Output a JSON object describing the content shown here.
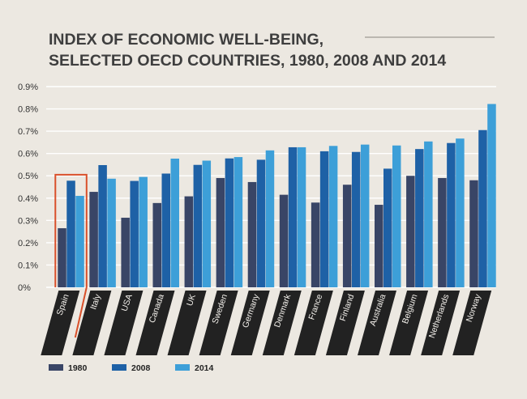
{
  "chart_data": {
    "type": "bar",
    "title_lines": [
      "INDEX OF ECONOMIC WELL-BEING,",
      "SELECTED OECD COUNTRIES, 1980, 2008 AND 2014"
    ],
    "categories": [
      "Spain",
      "Italy",
      "USA",
      "Canada",
      "UK",
      "Sweden",
      "Germany",
      "Denmark",
      "France",
      "Finland",
      "Australia",
      "Belgium",
      "Netherlands",
      "Norway"
    ],
    "series": [
      {
        "name": "1980",
        "color": "#394566",
        "values": [
          0.265,
          0.428,
          0.312,
          0.378,
          0.408,
          0.49,
          0.472,
          0.415,
          0.38,
          0.46,
          0.37,
          0.5,
          0.49,
          0.48
        ]
      },
      {
        "name": "2008",
        "color": "#1e61a6",
        "values": [
          0.478,
          0.548,
          0.477,
          0.51,
          0.549,
          0.578,
          0.572,
          0.628,
          0.61,
          0.607,
          0.532,
          0.62,
          0.647,
          0.705
        ]
      },
      {
        "name": "2014",
        "color": "#3d9fd8",
        "values": [
          0.41,
          0.487,
          0.495,
          0.577,
          0.568,
          0.584,
          0.614,
          0.628,
          0.634,
          0.64,
          0.636,
          0.654,
          0.667,
          0.822
        ]
      }
    ],
    "yticks": [
      "0%",
      "0.1%",
      "0.2%",
      "0.3%",
      "0.4%",
      "0.5%",
      "0.6%",
      "0.7%",
      "0.8%",
      "0.9%"
    ],
    "ylim": [
      0,
      0.9
    ],
    "xlabel": "",
    "ylabel": "",
    "grid": true,
    "legend_position": "bottom-left",
    "highlight_category": "Spain",
    "highlight_color": "#d9502a"
  }
}
